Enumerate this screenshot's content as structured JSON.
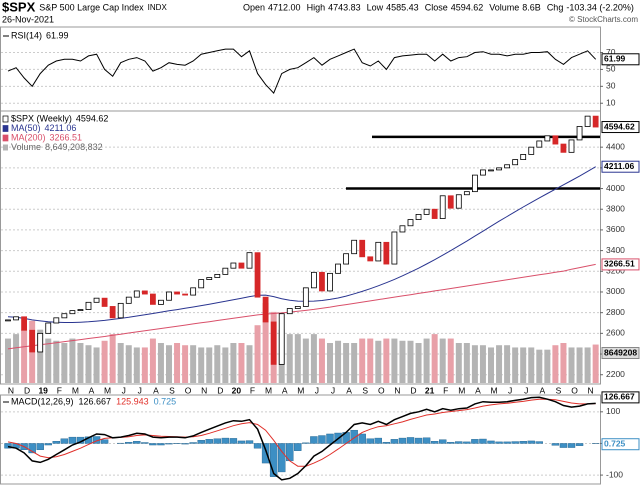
{
  "header": {
    "symbol": "$SPX",
    "name": "S&P 500 Large Cap Index",
    "exchange": "INDX",
    "date": "26-Nov-2021",
    "copyright": "© StockCharts.com",
    "quote": [
      {
        "label": "Open",
        "value": "4712.00"
      },
      {
        "label": "High",
        "value": "4743.83"
      },
      {
        "label": "Low",
        "value": "4585.43"
      },
      {
        "label": "Close",
        "value": "4594.62"
      },
      {
        "label": "Volume",
        "value": "8.6B"
      },
      {
        "label": "Chg",
        "value": "-103.34 (-2.20%)"
      }
    ]
  },
  "chart_data": [
    {
      "type": "line",
      "ylim": [
        2,
        99
      ],
      "yticks": [
        70,
        50,
        30,
        10
      ],
      "grid": true,
      "series": [
        {
          "name": "RSI(14)",
          "color": "#000000",
          "values": [
            48,
            52,
            40,
            30,
            45,
            55,
            60,
            62,
            62,
            60,
            66,
            68,
            50,
            42,
            58,
            62,
            64,
            60,
            48,
            52,
            58,
            56,
            55,
            60,
            68,
            70,
            72,
            74,
            74,
            65,
            72,
            45,
            32,
            22,
            45,
            50,
            52,
            58,
            64,
            55,
            62,
            66,
            70,
            74,
            58,
            54,
            60,
            50,
            64,
            66,
            67,
            68,
            68,
            60,
            68,
            60,
            64,
            65,
            70,
            71,
            68,
            68,
            66,
            68,
            68,
            70,
            70,
            71,
            62,
            56,
            64,
            68,
            72,
            61.99
          ]
        }
      ]
    },
    {
      "type": "candlestick",
      "ylim": [
        2120,
        4740
      ],
      "yticks": [
        2200,
        2400,
        2600,
        2800,
        3000,
        3200,
        3400,
        3600,
        3800,
        4000,
        4200,
        4400
      ],
      "grid": true,
      "hlines": [
        4500,
        4000
      ],
      "x_labels": [
        "N",
        "D",
        "19",
        "F",
        "M",
        "A",
        "M",
        "J",
        "J",
        "A",
        "S",
        "O",
        "N",
        "D",
        "20",
        "F",
        "M",
        "A",
        "M",
        "J",
        "J",
        "A",
        "S",
        "O",
        "N",
        "D",
        "21",
        "F",
        "M",
        "A",
        "M",
        "J",
        "J",
        "A",
        "S",
        "O",
        "N"
      ],
      "series": [
        {
          "name": "$SPX (Weekly)",
          "color": "#000000",
          "down_color": "#d62728",
          "values": [
            2730,
            2760,
            2630,
            2420,
            2600,
            2700,
            2750,
            2790,
            2820,
            2830,
            2900,
            2940,
            2860,
            2750,
            2890,
            2950,
            3010,
            2980,
            2880,
            2920,
            3000,
            2980,
            2970,
            3040,
            3120,
            3140,
            3170,
            3230,
            3280,
            3230,
            3380,
            2950,
            2710,
            2300,
            2790,
            2840,
            2860,
            3040,
            3190,
            3010,
            3180,
            3270,
            3370,
            3500,
            3340,
            3300,
            3480,
            3270,
            3580,
            3640,
            3700,
            3750,
            3800,
            3710,
            3930,
            3810,
            3940,
            3970,
            4130,
            4180,
            4180,
            4200,
            4230,
            4280,
            4330,
            4400,
            4460,
            4510,
            4430,
            4350,
            4470,
            4600,
            4700,
            4594.62
          ]
        },
        {
          "name": "MA(50)",
          "color": "#2a3590",
          "values": [
            2760,
            2755,
            2745,
            2730,
            2720,
            2712,
            2708,
            2705,
            2705,
            2708,
            2712,
            2718,
            2725,
            2735,
            2745,
            2755,
            2768,
            2780,
            2792,
            2805,
            2818,
            2830,
            2842,
            2855,
            2868,
            2882,
            2896,
            2910,
            2925,
            2940,
            2955,
            2968,
            2970,
            2955,
            2935,
            2920,
            2912,
            2910,
            2912,
            2918,
            2928,
            2942,
            2960,
            2982,
            3006,
            3032,
            3060,
            3090,
            3122,
            3156,
            3192,
            3230,
            3270,
            3312,
            3356,
            3400,
            3446,
            3492,
            3540,
            3588,
            3636,
            3684,
            3730,
            3776,
            3822,
            3866,
            3910,
            3952,
            3994,
            4036,
            4078,
            4120,
            4166,
            4211.06
          ]
        },
        {
          "name": "MA(200)",
          "color": "#d9506a",
          "values": [
            2450,
            2460,
            2470,
            2480,
            2490,
            2500,
            2510,
            2520,
            2530,
            2540,
            2550,
            2560,
            2570,
            2581,
            2592,
            2603,
            2614,
            2625,
            2636,
            2647,
            2658,
            2669,
            2680,
            2691,
            2702,
            2713,
            2724,
            2735,
            2746,
            2757,
            2768,
            2778,
            2786,
            2792,
            2798,
            2805,
            2813,
            2822,
            2832,
            2843,
            2854,
            2866,
            2878,
            2890,
            2902,
            2914,
            2926,
            2938,
            2950,
            2962,
            2974,
            2986,
            2998,
            3010,
            3022,
            3034,
            3046,
            3058,
            3070,
            3082,
            3094,
            3106,
            3118,
            3130,
            3142,
            3154,
            3166,
            3178,
            3190,
            3202,
            3220,
            3236,
            3251,
            3266.51
          ]
        }
      ],
      "volume": {
        "name": "Volume",
        "color": "#b4b4b4",
        "down_color": "#e8a0a8",
        "legend_label": "8,649,208,832",
        "box_label": "8649208",
        "values": [
          10000000000.0,
          11000000000.0,
          12000000000.0,
          14000000000.0,
          12000000000.0,
          10000000000.0,
          9500000000.0,
          9000000000.0,
          10000000000.0,
          9000000000.0,
          8500000000.0,
          8000000000.0,
          9500000000.0,
          11000000000.0,
          9000000000.0,
          8500000000.0,
          8000000000.0,
          8000000000.0,
          10000000000.0,
          9000000000.0,
          8500000000.0,
          9000000000.0,
          8500000000.0,
          8500000000.0,
          8000000000.0,
          8000000000.0,
          8500000000.0,
          8000000000.0,
          9000000000.0,
          9000000000.0,
          8500000000.0,
          13000000000.0,
          18000000000.0,
          16000000000.0,
          12000000000.0,
          11000000000.0,
          11000000000.0,
          10000000000.0,
          11000000000.0,
          10000000000.0,
          9000000000.0,
          9500000000.0,
          9000000000.0,
          9000000000.0,
          10000000000.0,
          10000000000.0,
          9500000000.0,
          10000000000.0,
          10000000000.0,
          9500000000.0,
          9500000000.0,
          9000000000.0,
          10000000000.0,
          11000000000.0,
          10000000000.0,
          10000000000.0,
          9000000000.0,
          9000000000.0,
          8500000000.0,
          8500000000.0,
          8000000000.0,
          8500000000.0,
          8500000000.0,
          8000000000.0,
          8000000000.0,
          8000000000.0,
          7500000000.0,
          7500000000.0,
          8500000000.0,
          9000000000.0,
          8000000000.0,
          8000000000.0,
          8000000000.0,
          8649208832
        ]
      }
    },
    {
      "type": "macd",
      "ylim": [
        -125,
        150
      ],
      "yticks": [
        100,
        0,
        -100
      ],
      "grid": true,
      "series": [
        {
          "name": "MACD(12,26,9)",
          "color": "#000000",
          "values": [
            -10,
            -15,
            -30,
            -55,
            -60,
            -50,
            -35,
            -20,
            -5,
            5,
            18,
            30,
            28,
            18,
            20,
            25,
            32,
            30,
            20,
            18,
            20,
            20,
            18,
            24,
            35,
            45,
            55,
            65,
            72,
            70,
            75,
            45,
            -20,
            -95,
            -115,
            -110,
            -95,
            -70,
            -40,
            -25,
            -5,
            15,
            35,
            60,
            65,
            60,
            70,
            60,
            75,
            85,
            95,
            100,
            108,
            100,
            110,
            105,
            110,
            112,
            125,
            132,
            130,
            130,
            132,
            136,
            140,
            145,
            146,
            140,
            132,
            120,
            115,
            118,
            125,
            126.667
          ]
        },
        {
          "color": "#e0302a",
          "values": [
            5,
            0,
            -10,
            -25,
            -40,
            -45,
            -42,
            -35,
            -25,
            -15,
            -3,
            8,
            16,
            18,
            19,
            21,
            25,
            27,
            25,
            23,
            22,
            21,
            20,
            21,
            25,
            32,
            40,
            48,
            56,
            62,
            66,
            60,
            42,
            10,
            -25,
            -55,
            -72,
            -72,
            -62,
            -50,
            -35,
            -18,
            0,
            18,
            35,
            45,
            53,
            56,
            62,
            68,
            76,
            83,
            90,
            93,
            98,
            101,
            104,
            107,
            112,
            118,
            122,
            125,
            127,
            130,
            133,
            137,
            140,
            140,
            138,
            133,
            128,
            125,
            125,
            125.943
          ]
        },
        {
          "color": "#3d8fc4",
          "values": [
            -15,
            -15,
            -20,
            -30,
            -20,
            -5,
            7,
            15,
            20,
            20,
            21,
            22,
            12,
            0,
            1,
            4,
            7,
            3,
            -5,
            -5,
            -2,
            -1,
            -2,
            3,
            10,
            13,
            15,
            17,
            16,
            8,
            9,
            -15,
            -62,
            -105,
            -90,
            -55,
            -23,
            2,
            22,
            25,
            30,
            33,
            35,
            42,
            30,
            15,
            17,
            4,
            13,
            17,
            19,
            17,
            18,
            7,
            12,
            4,
            6,
            5,
            13,
            14,
            8,
            5,
            5,
            6,
            7,
            8,
            6,
            0,
            -6,
            -13,
            -13,
            -7,
            0,
            0.725
          ]
        }
      ]
    }
  ]
}
